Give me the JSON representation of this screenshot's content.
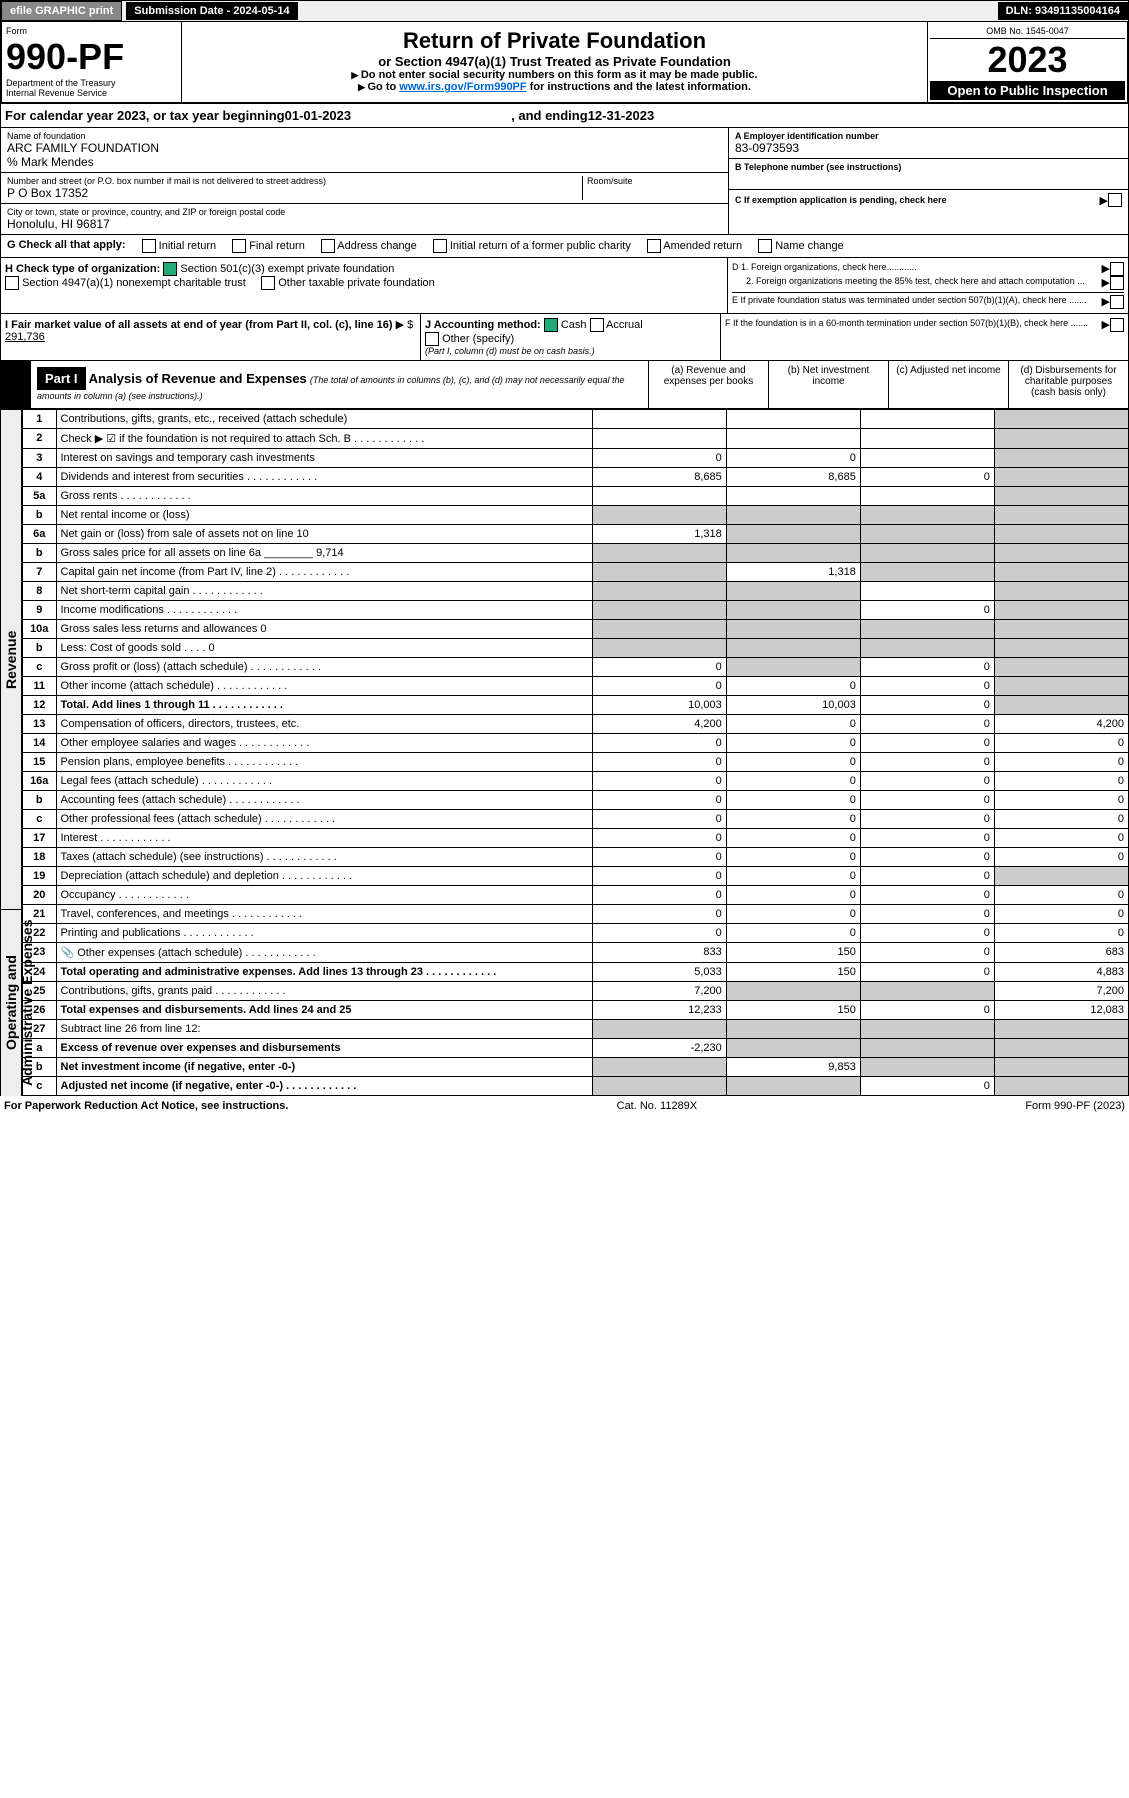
{
  "topbar": {
    "efile": "efile GRAPHIC print",
    "sub_date_label": "Submission Date - 2024-05-14",
    "dln": "DLN: 93491135004164"
  },
  "header": {
    "form_label": "Form",
    "form_no": "990-PF",
    "dept": "Department of the Treasury",
    "irs": "Internal Revenue Service",
    "title": "Return of Private Foundation",
    "subtitle": "or Section 4947(a)(1) Trust Treated as Private Foundation",
    "instr1": "Do not enter social security numbers on this form as it may be made public.",
    "instr2_pre": "Go to ",
    "instr2_link": "www.irs.gov/Form990PF",
    "instr2_post": " for instructions and the latest information.",
    "omb": "OMB No. 1545-0047",
    "year": "2023",
    "open": "Open to Public Inspection"
  },
  "calyear": {
    "pre": "For calendar year 2023, or tax year beginning ",
    "begin": "01-01-2023",
    "mid": " , and ending ",
    "end": "12-31-2023"
  },
  "entity": {
    "name_lbl": "Name of foundation",
    "name": "ARC FAMILY FOUNDATION",
    "care_of": "% Mark Mendes",
    "addr_lbl": "Number and street (or P.O. box number if mail is not delivered to street address)",
    "addr": "P O Box 17352",
    "room_lbl": "Room/suite",
    "city_lbl": "City or town, state or province, country, and ZIP or foreign postal code",
    "city": "Honolulu, HI  96817",
    "ein_lbl": "A Employer identification number",
    "ein": "83-0973593",
    "phone_lbl": "B Telephone number (see instructions)",
    "c_lbl": "C If exemption application is pending, check here",
    "d1": "D 1. Foreign organizations, check here............",
    "d2": "2. Foreign organizations meeting the 85% test, check here and attach computation ...",
    "e_lbl": "E If private foundation status was terminated under section 507(b)(1)(A), check here .......",
    "f_lbl": "F If the foundation is in a 60-month termination under section 507(b)(1)(B), check here ......."
  },
  "g": {
    "lbl": "G Check all that apply:",
    "opts": [
      "Initial return",
      "Final return",
      "Address change",
      "Initial return of a former public charity",
      "Amended return",
      "Name change"
    ]
  },
  "h": {
    "lbl": "H Check type of organization:",
    "opt1": "Section 501(c)(3) exempt private foundation",
    "opt2": "Section 4947(a)(1) nonexempt charitable trust",
    "opt3": "Other taxable private foundation"
  },
  "i": {
    "lbl": "I Fair market value of all assets at end of year (from Part II, col. (c), line 16)",
    "amt_lbl": "$",
    "amt": "291,736"
  },
  "j": {
    "lbl": "J Accounting method:",
    "cash": "Cash",
    "accrual": "Accrual",
    "other": "Other (specify)",
    "note": "(Part I, column (d) must be on cash basis.)"
  },
  "part1": {
    "hdr": "Part I",
    "title": "Analysis of Revenue and Expenses",
    "title_note": "(The total of amounts in columns (b), (c), and (d) may not necessarily equal the amounts in column (a) (see instructions).)",
    "col_a": "(a) Revenue and expenses per books",
    "col_b": "(b) Net investment income",
    "col_c": "(c) Adjusted net income",
    "col_d": "(d) Disbursements for charitable purposes (cash basis only)"
  },
  "sections": {
    "revenue": "Revenue",
    "expenses": "Operating and Administrative Expenses"
  },
  "lines": [
    {
      "n": "1",
      "lbl": "Contributions, gifts, grants, etc., received (attach schedule)",
      "a": "",
      "b": "",
      "c": "",
      "d": "",
      "ds": true
    },
    {
      "n": "2",
      "lbl": "Check ▶ ☑ if the foundation is not required to attach Sch. B",
      "a": "",
      "b": "",
      "c": "",
      "d": "",
      "ds": true,
      "dotted": true
    },
    {
      "n": "3",
      "lbl": "Interest on savings and temporary cash investments",
      "a": "0",
      "b": "0",
      "c": "",
      "d": "",
      "ds": true
    },
    {
      "n": "4",
      "lbl": "Dividends and interest from securities",
      "a": "8,685",
      "b": "8,685",
      "c": "0",
      "d": "",
      "ds": true,
      "dotted": true
    },
    {
      "n": "5a",
      "lbl": "Gross rents",
      "a": "",
      "b": "",
      "c": "",
      "d": "",
      "ds": true,
      "dotted": true
    },
    {
      "n": "b",
      "lbl": "Net rental income or (loss)",
      "a": "",
      "b": "",
      "c": "",
      "d": "",
      "ds": true,
      "bsh": true,
      "csh": true,
      "ash": true
    },
    {
      "n": "6a",
      "lbl": "Net gain or (loss) from sale of assets not on line 10",
      "a": "1,318",
      "b": "",
      "c": "",
      "d": "",
      "ds": true,
      "bsh": true,
      "csh": true
    },
    {
      "n": "b",
      "lbl": "Gross sales price for all assets on line 6a ________ 9,714",
      "a": "",
      "b": "",
      "c": "",
      "d": "",
      "ds": true,
      "ash": true,
      "bsh": true,
      "csh": true
    },
    {
      "n": "7",
      "lbl": "Capital gain net income (from Part IV, line 2)",
      "a": "",
      "b": "1,318",
      "c": "",
      "d": "",
      "ds": true,
      "ash": true,
      "csh": true,
      "dotted": true
    },
    {
      "n": "8",
      "lbl": "Net short-term capital gain",
      "a": "",
      "b": "",
      "c": "",
      "d": "",
      "ds": true,
      "ash": true,
      "bsh": true,
      "dotted": true
    },
    {
      "n": "9",
      "lbl": "Income modifications",
      "a": "",
      "b": "",
      "c": "0",
      "d": "",
      "ds": true,
      "ash": true,
      "bsh": true,
      "dotted": true
    },
    {
      "n": "10a",
      "lbl": "Gross sales less returns and allowances                    0",
      "a": "",
      "b": "",
      "c": "",
      "d": "",
      "ds": true,
      "ash": true,
      "bsh": true,
      "csh": true
    },
    {
      "n": "b",
      "lbl": "Less: Cost of goods sold     . . . .                         0",
      "a": "",
      "b": "",
      "c": "",
      "d": "",
      "ds": true,
      "ash": true,
      "bsh": true,
      "csh": true
    },
    {
      "n": "c",
      "lbl": "Gross profit or (loss) (attach schedule)",
      "a": "0",
      "b": "",
      "c": "0",
      "d": "",
      "ds": true,
      "bsh": true,
      "dotted": true
    },
    {
      "n": "11",
      "lbl": "Other income (attach schedule)",
      "a": "0",
      "b": "0",
      "c": "0",
      "d": "",
      "ds": true,
      "dotted": true
    },
    {
      "n": "12",
      "lbl": "Total. Add lines 1 through 11",
      "a": "10,003",
      "b": "10,003",
      "c": "0",
      "d": "",
      "ds": true,
      "bold": true,
      "dotted": true
    },
    {
      "n": "13",
      "lbl": "Compensation of officers, directors, trustees, etc.",
      "a": "4,200",
      "b": "0",
      "c": "0",
      "d": "4,200"
    },
    {
      "n": "14",
      "lbl": "Other employee salaries and wages",
      "a": "0",
      "b": "0",
      "c": "0",
      "d": "0",
      "dotted": true
    },
    {
      "n": "15",
      "lbl": "Pension plans, employee benefits",
      "a": "0",
      "b": "0",
      "c": "0",
      "d": "0",
      "dotted": true
    },
    {
      "n": "16a",
      "lbl": "Legal fees (attach schedule)",
      "a": "0",
      "b": "0",
      "c": "0",
      "d": "0",
      "dotted": true
    },
    {
      "n": "b",
      "lbl": "Accounting fees (attach schedule)",
      "a": "0",
      "b": "0",
      "c": "0",
      "d": "0",
      "dotted": true
    },
    {
      "n": "c",
      "lbl": "Other professional fees (attach schedule)",
      "a": "0",
      "b": "0",
      "c": "0",
      "d": "0",
      "dotted": true
    },
    {
      "n": "17",
      "lbl": "Interest",
      "a": "0",
      "b": "0",
      "c": "0",
      "d": "0",
      "dotted": true
    },
    {
      "n": "18",
      "lbl": "Taxes (attach schedule) (see instructions)",
      "a": "0",
      "b": "0",
      "c": "0",
      "d": "0",
      "dotted": true
    },
    {
      "n": "19",
      "lbl": "Depreciation (attach schedule) and depletion",
      "a": "0",
      "b": "0",
      "c": "0",
      "d": "",
      "ds": true,
      "dotted": true
    },
    {
      "n": "20",
      "lbl": "Occupancy",
      "a": "0",
      "b": "0",
      "c": "0",
      "d": "0",
      "dotted": true
    },
    {
      "n": "21",
      "lbl": "Travel, conferences, and meetings",
      "a": "0",
      "b": "0",
      "c": "0",
      "d": "0",
      "dotted": true
    },
    {
      "n": "22",
      "lbl": "Printing and publications",
      "a": "0",
      "b": "0",
      "c": "0",
      "d": "0",
      "dotted": true
    },
    {
      "n": "23",
      "lbl": "Other expenses (attach schedule)",
      "a": "833",
      "b": "150",
      "c": "0",
      "d": "683",
      "dotted": true,
      "icon": true
    },
    {
      "n": "24",
      "lbl": "Total operating and administrative expenses. Add lines 13 through 23",
      "a": "5,033",
      "b": "150",
      "c": "0",
      "d": "4,883",
      "bold": true,
      "dotted": true
    },
    {
      "n": "25",
      "lbl": "Contributions, gifts, grants paid",
      "a": "7,200",
      "b": "",
      "c": "",
      "d": "7,200",
      "bsh": true,
      "csh": true,
      "dotted": true
    },
    {
      "n": "26",
      "lbl": "Total expenses and disbursements. Add lines 24 and 25",
      "a": "12,233",
      "b": "150",
      "c": "0",
      "d": "12,083",
      "bold": true
    },
    {
      "n": "27",
      "lbl": "Subtract line 26 from line 12:",
      "a": "",
      "b": "",
      "c": "",
      "d": "",
      "ash": true,
      "bsh": true,
      "csh": true,
      "ds": true
    },
    {
      "n": "a",
      "lbl": "Excess of revenue over expenses and disbursements",
      "a": "-2,230",
      "b": "",
      "c": "",
      "d": "",
      "bsh": true,
      "csh": true,
      "ds": true,
      "bold": true
    },
    {
      "n": "b",
      "lbl": "Net investment income (if negative, enter -0-)",
      "a": "",
      "b": "9,853",
      "c": "",
      "d": "",
      "ash": true,
      "csh": true,
      "ds": true,
      "bold": true
    },
    {
      "n": "c",
      "lbl": "Adjusted net income (if negative, enter -0-)",
      "a": "",
      "b": "",
      "c": "0",
      "d": "",
      "ash": true,
      "bsh": true,
      "ds": true,
      "bold": true,
      "dotted": true
    }
  ],
  "footer": {
    "left": "For Paperwork Reduction Act Notice, see instructions.",
    "mid": "Cat. No. 11289X",
    "right": "Form 990-PF (2023)"
  }
}
